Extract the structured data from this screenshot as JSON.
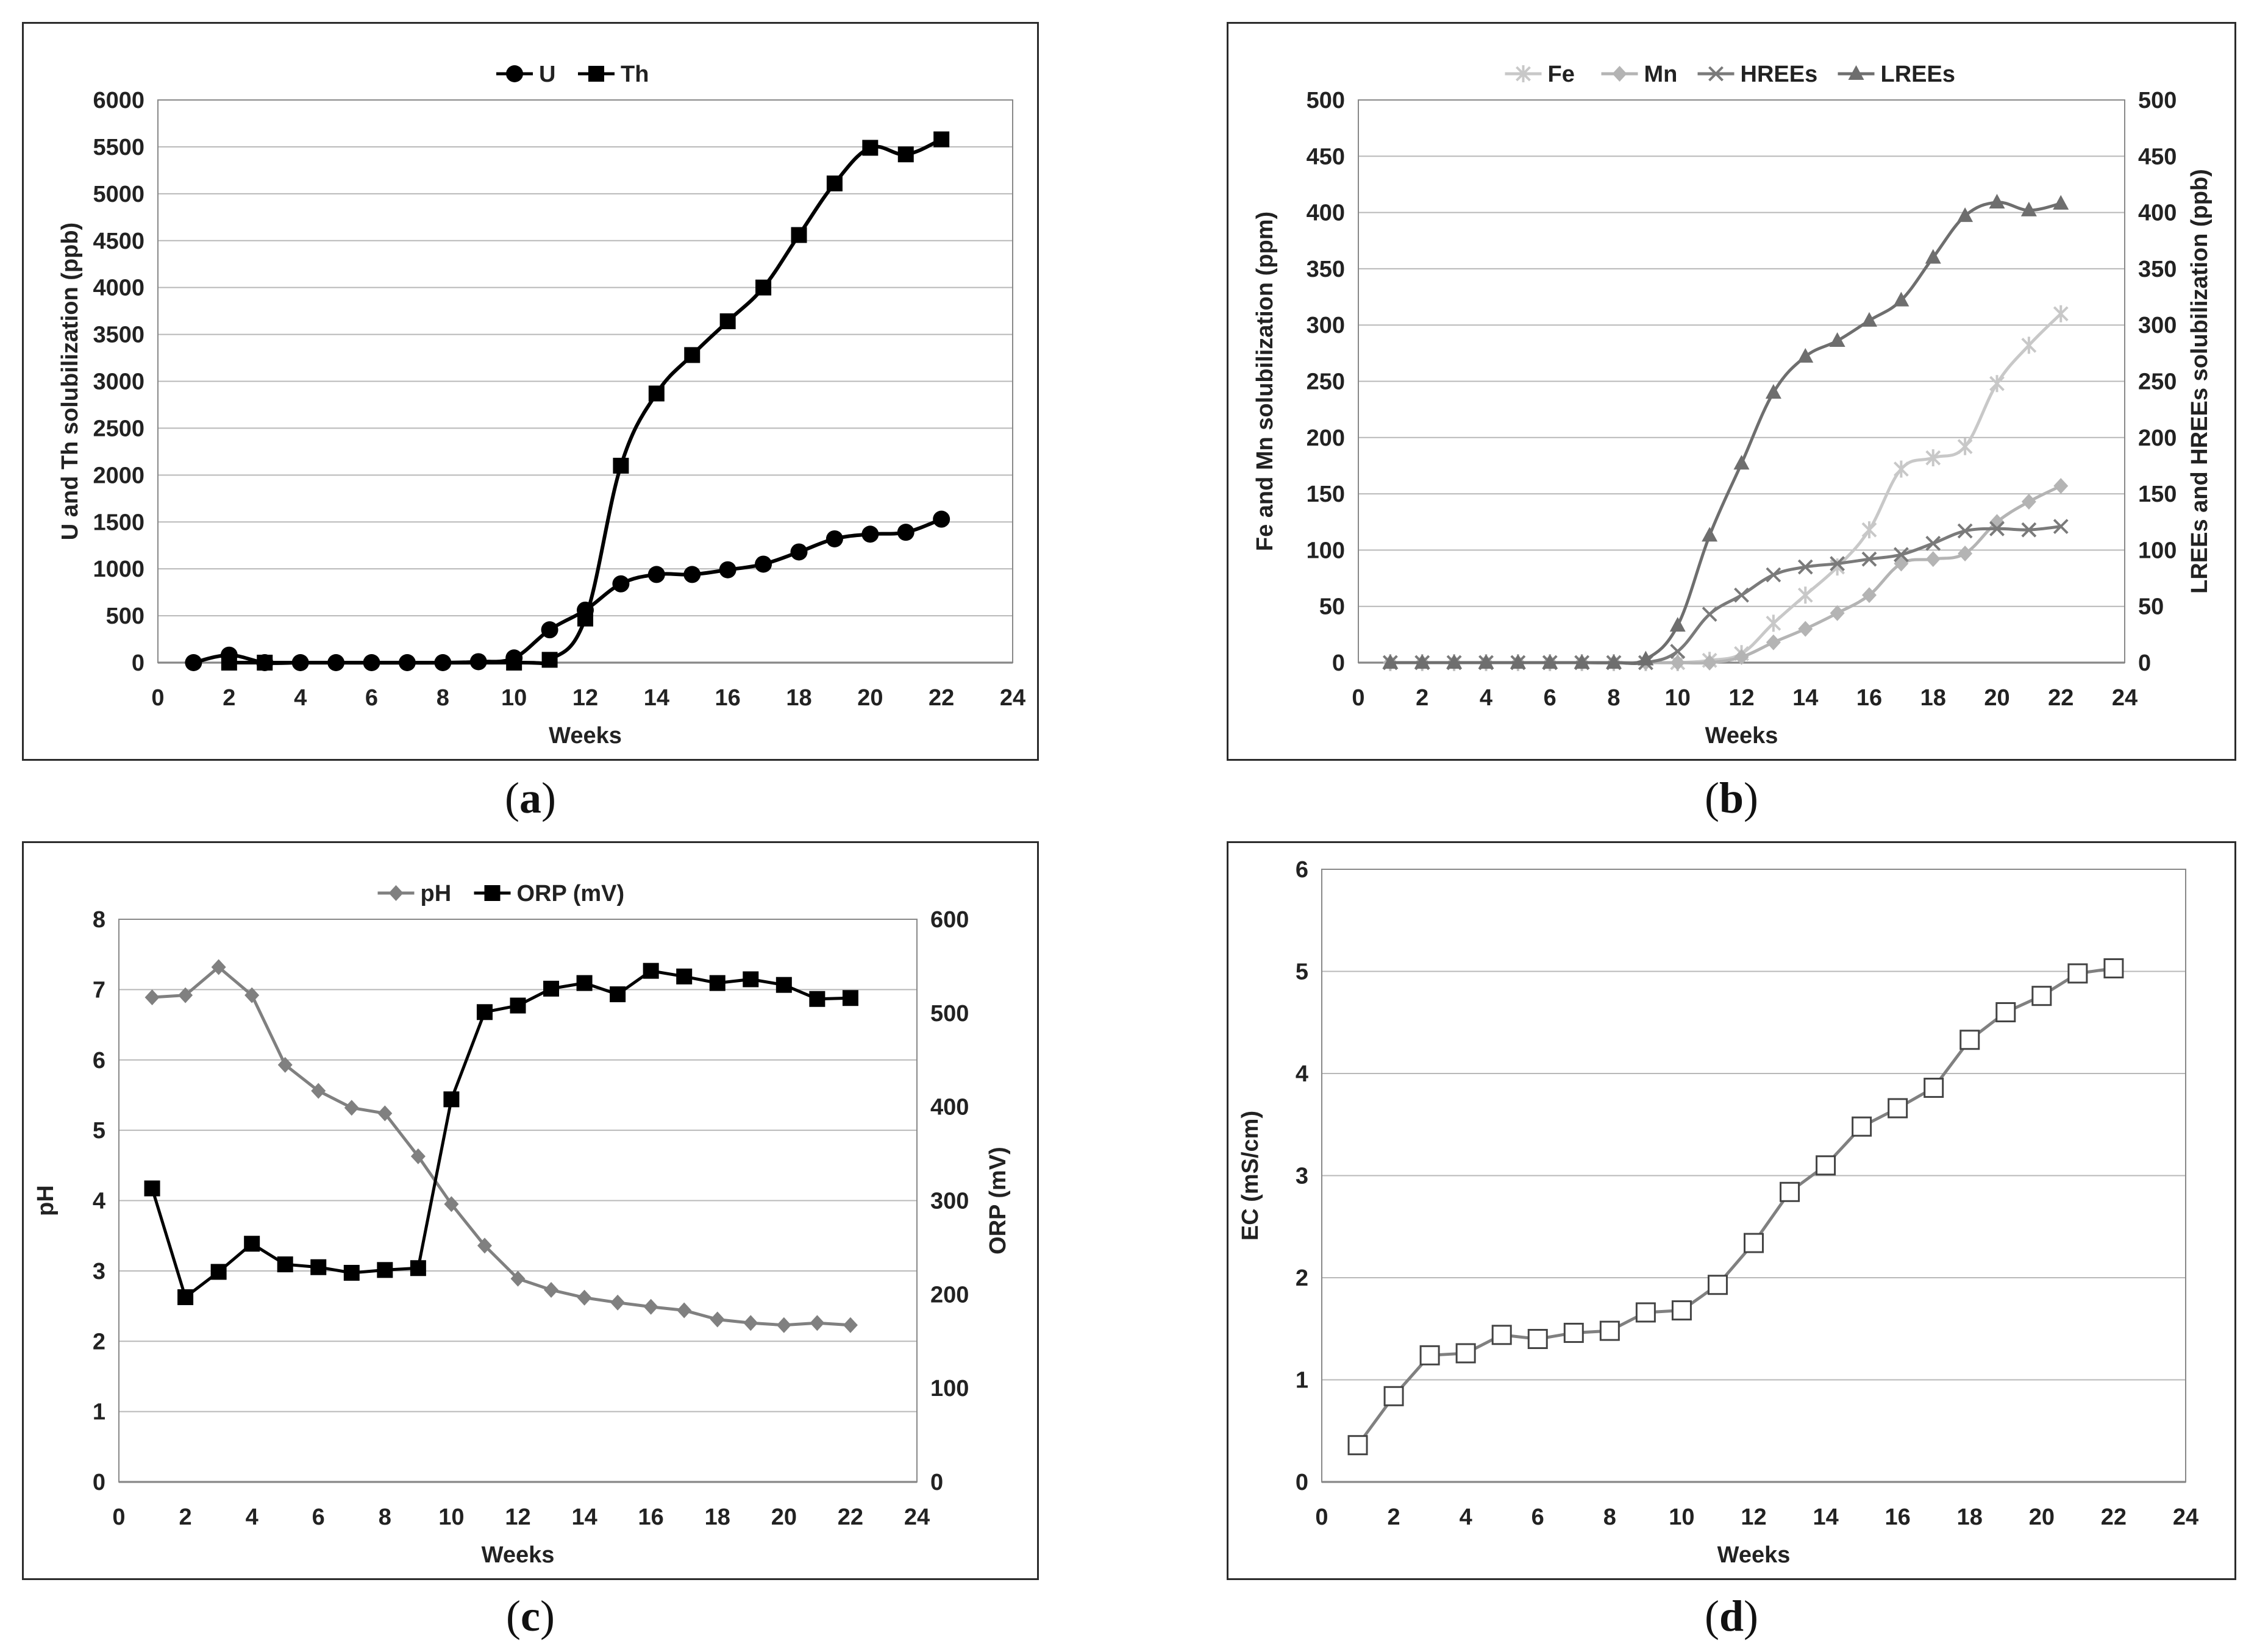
{
  "captions": [
    "a",
    "b",
    "c",
    "d"
  ],
  "chart_data": [
    {
      "id": "a",
      "type": "line",
      "title": "",
      "xlabel": "Weeks",
      "ylabel": "U and Th solubilization (ppb)",
      "xlim": [
        0,
        24
      ],
      "ylim": [
        0,
        6000
      ],
      "xticks": [
        0,
        2,
        4,
        6,
        8,
        10,
        12,
        14,
        16,
        18,
        20,
        22,
        24
      ],
      "yticks": [
        0,
        500,
        1000,
        1500,
        2000,
        2500,
        3000,
        3500,
        4000,
        4500,
        5000,
        5500,
        6000
      ],
      "grid": true,
      "legend": "top-center",
      "series": [
        {
          "name": "U",
          "marker": "circle",
          "color": "#000000",
          "x": [
            1,
            2,
            3,
            4,
            5,
            6,
            7,
            8,
            9,
            10,
            11,
            12,
            13,
            14,
            15,
            16,
            17,
            18,
            19,
            20,
            21,
            22
          ],
          "y": [
            0,
            80,
            0,
            0,
            0,
            0,
            0,
            0,
            10,
            50,
            350,
            560,
            840,
            940,
            940,
            990,
            1050,
            1180,
            1320,
            1370,
            1390,
            1530
          ]
        },
        {
          "name": "Th",
          "marker": "square",
          "color": "#000000",
          "x": [
            2,
            3,
            10,
            11,
            12,
            13,
            14,
            15,
            16,
            17,
            18,
            19,
            20,
            21,
            22
          ],
          "y": [
            0,
            0,
            0,
            30,
            470,
            2100,
            2870,
            3280,
            3640,
            4000,
            4560,
            5110,
            5490,
            5420,
            5580
          ]
        }
      ]
    },
    {
      "id": "b",
      "type": "line",
      "title": "",
      "xlabel": "Weeks",
      "ylabel": "Fe and Mn solubilization (ppm)",
      "y2label": "LREEs and HREEs solubilization (ppb)",
      "xlim": [
        0,
        24
      ],
      "ylim": [
        0,
        500
      ],
      "y2lim": [
        0,
        500
      ],
      "xticks": [
        0,
        2,
        4,
        6,
        8,
        10,
        12,
        14,
        16,
        18,
        20,
        22,
        24
      ],
      "yticks": [
        0,
        50,
        100,
        150,
        200,
        250,
        300,
        350,
        400,
        450,
        500
      ],
      "grid": true,
      "legend": "top-center",
      "series": [
        {
          "name": "Fe",
          "marker": "star",
          "color": "#c8c8c8",
          "axis": "left",
          "x": [
            1,
            2,
            3,
            4,
            5,
            6,
            7,
            8,
            9,
            10,
            11,
            12,
            13,
            14,
            15,
            16,
            17,
            18,
            19,
            20,
            21,
            22
          ],
          "y": [
            0,
            0,
            0,
            0,
            0,
            0,
            0,
            0,
            0,
            0,
            2,
            8,
            35,
            60,
            85,
            118,
            172,
            182,
            192,
            248,
            282,
            310
          ]
        },
        {
          "name": "Mn",
          "marker": "diamond",
          "color": "#b4b4b4",
          "axis": "left",
          "x": [
            1,
            2,
            3,
            4,
            5,
            6,
            7,
            8,
            9,
            10,
            11,
            12,
            13,
            14,
            15,
            16,
            17,
            18,
            19,
            20,
            21,
            22
          ],
          "y": [
            0,
            0,
            0,
            0,
            0,
            0,
            0,
            0,
            0,
            0,
            0,
            5,
            18,
            30,
            44,
            60,
            88,
            92,
            97,
            125,
            143,
            157
          ]
        },
        {
          "name": "HREEs",
          "marker": "x",
          "color": "#7a7a7a",
          "axis": "right",
          "x": [
            1,
            2,
            3,
            4,
            5,
            6,
            7,
            8,
            9,
            10,
            11,
            12,
            13,
            14,
            15,
            16,
            17,
            18,
            19,
            20,
            21,
            22
          ],
          "y": [
            0,
            0,
            0,
            0,
            0,
            0,
            0,
            0,
            0,
            10,
            43,
            60,
            78,
            85,
            88,
            92,
            96,
            106,
            117,
            119,
            118,
            121
          ]
        },
        {
          "name": "LREEs",
          "marker": "triangle",
          "color": "#6e6e6e",
          "axis": "right",
          "x": [
            1,
            2,
            3,
            4,
            5,
            6,
            7,
            8,
            9,
            10,
            11,
            12,
            13,
            14,
            15,
            16,
            17,
            18,
            19,
            20,
            21,
            22
          ],
          "y": [
            0,
            0,
            0,
            0,
            0,
            0,
            0,
            0,
            3,
            33,
            113,
            177,
            240,
            272,
            286,
            304,
            322,
            360,
            397,
            409,
            402,
            408
          ]
        }
      ]
    },
    {
      "id": "c",
      "type": "line",
      "title": "",
      "xlabel": "Weeks",
      "ylabel": "pH",
      "y2label": "ORP (mV)",
      "xlim": [
        0,
        24
      ],
      "ylim": [
        0,
        8
      ],
      "y2lim": [
        0,
        600
      ],
      "xticks": [
        0,
        2,
        4,
        6,
        8,
        10,
        12,
        14,
        16,
        18,
        20,
        22,
        24
      ],
      "yticks": [
        0,
        1,
        2,
        3,
        4,
        5,
        6,
        7,
        8
      ],
      "y2ticks": [
        0,
        100,
        200,
        300,
        400,
        500,
        600
      ],
      "grid": true,
      "legend": "top-center",
      "series": [
        {
          "name": "pH",
          "marker": "diamond",
          "color": "#808080",
          "axis": "left",
          "x": [
            1,
            2,
            3,
            4,
            5,
            6,
            7,
            8,
            9,
            10,
            11,
            12,
            13,
            14,
            15,
            16,
            17,
            18,
            19,
            20,
            21,
            22
          ],
          "y": [
            6.89,
            6.92,
            7.32,
            6.92,
            5.93,
            5.56,
            5.32,
            5.24,
            4.63,
            3.95,
            3.36,
            2.89,
            2.73,
            2.62,
            2.55,
            2.49,
            2.44,
            2.31,
            2.26,
            2.23,
            2.26,
            2.23
          ]
        },
        {
          "name": "ORP (mV)",
          "marker": "square",
          "color": "#000000",
          "axis": "right",
          "x": [
            1,
            2,
            3,
            4,
            5,
            6,
            7,
            8,
            9,
            10,
            11,
            12,
            13,
            14,
            15,
            16,
            17,
            18,
            19,
            20,
            21,
            22
          ],
          "y": [
            313,
            197,
            224,
            254,
            232,
            229,
            223,
            226,
            228,
            408,
            501,
            508,
            526,
            532,
            520,
            545,
            539,
            532,
            536,
            530,
            515,
            516
          ]
        }
      ]
    },
    {
      "id": "d",
      "type": "line",
      "title": "",
      "xlabel": "Weeks",
      "ylabel": "EC (mS/cm)",
      "xlim": [
        0,
        24
      ],
      "ylim": [
        0,
        6
      ],
      "xticks": [
        0,
        2,
        4,
        6,
        8,
        10,
        12,
        14,
        16,
        18,
        20,
        22,
        24
      ],
      "yticks": [
        0,
        1,
        2,
        3,
        4,
        5,
        6
      ],
      "grid": true,
      "legend": "none",
      "series": [
        {
          "name": "",
          "marker": "open-square",
          "color": "#808080",
          "x": [
            1,
            2,
            3,
            4,
            5,
            6,
            7,
            8,
            9,
            10,
            11,
            12,
            13,
            14,
            15,
            16,
            17,
            18,
            19,
            20,
            21,
            22
          ],
          "y": [
            0.36,
            0.84,
            1.24,
            1.26,
            1.44,
            1.4,
            1.46,
            1.48,
            1.66,
            1.68,
            1.93,
            2.34,
            2.84,
            3.1,
            3.48,
            3.66,
            3.86,
            4.33,
            4.6,
            4.76,
            4.98,
            5.03
          ]
        }
      ]
    }
  ]
}
